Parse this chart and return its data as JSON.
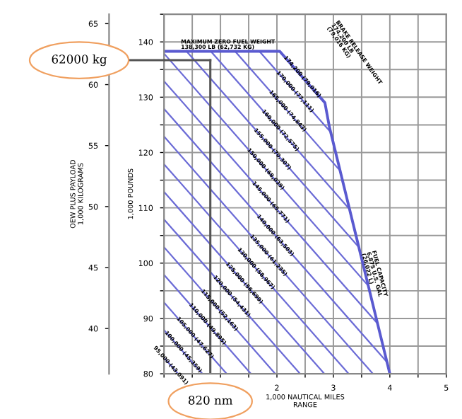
{
  "chart_data": {
    "type": "line",
    "xlabel": "1,000 NAUTICAL MILES\nRANGE",
    "ylabel": "1,000 POUNDS",
    "y2label": "OEW PLUS PAYLOAD\n1,000 KILOGRAMS",
    "xlim": [
      0,
      5
    ],
    "ylim": [
      80,
      145
    ],
    "y2lim": [
      36.29,
      65.77
    ],
    "xticks": [
      {
        "value": 0,
        "label": null
      },
      {
        "value": 0.5,
        "label": null
      },
      {
        "value": 1,
        "label": null
      },
      {
        "value": 1.5,
        "label": null
      },
      2,
      {
        "value": 2.5,
        "label": null
      },
      3,
      {
        "value": 3.5,
        "label": null
      },
      4,
      {
        "value": 4.5,
        "label": null
      },
      5
    ],
    "yticks": [
      80,
      {
        "value": 85,
        "label": null
      },
      90,
      {
        "value": 95,
        "label": null
      },
      100,
      {
        "value": 105,
        "label": null
      },
      110,
      {
        "value": 115,
        "label": null
      },
      120,
      {
        "value": 125,
        "label": null
      },
      130,
      {
        "value": 135,
        "label": null
      },
      140,
      {
        "value": 145,
        "label": null
      }
    ],
    "y2ticks": [
      40,
      45,
      50,
      55,
      60,
      65
    ],
    "grid": true,
    "legend": false,
    "marker": "none",
    "line_style": "solid",
    "series": [
      {
        "color": "#6b6bd6",
        "x": [
          0,
          0.25
        ],
        "values": [
          82.9,
          80
        ]
      },
      {
        "color": "#6b6bd6",
        "x": [
          0,
          0.68
        ],
        "values": [
          87.9,
          80
        ]
      },
      {
        "color": "#6b6bd6",
        "x": [
          0,
          1.11
        ],
        "values": [
          92.9,
          80
        ]
      },
      {
        "color": "#6b6bd6",
        "x": [
          0,
          1.54
        ],
        "values": [
          97.9,
          80
        ]
      },
      {
        "color": "#6b6bd6",
        "x": [
          0,
          1.97
        ],
        "values": [
          102.9,
          80
        ]
      },
      {
        "color": "#6b6bd6",
        "x": [
          0,
          2.41
        ],
        "values": [
          107.9,
          80
        ]
      },
      {
        "color": "#6b6bd6",
        "x": [
          0,
          2.84
        ],
        "values": [
          112.9,
          80
        ]
      },
      {
        "color": "#6b6bd6",
        "x": [
          0,
          3.27
        ],
        "values": [
          117.9,
          80
        ]
      },
      {
        "color": "#6b6bd6",
        "x": [
          0,
          3.7
        ],
        "values": [
          122.9,
          80
        ]
      },
      {
        "color": "#6b6bd6",
        "x": [
          0,
          3.95
        ],
        "values": [
          127.9,
          82.1
        ]
      },
      {
        "color": "#6b6bd6",
        "x": [
          0,
          3.78
        ],
        "values": [
          132.9,
          89.1
        ]
      },
      {
        "color": "#6b6bd6",
        "x": [
          0,
          3.61
        ],
        "values": [
          137.9,
          96.0
        ]
      },
      {
        "color": "#6b6bd6",
        "x": [
          0.4,
          3.45
        ],
        "values": [
          138.3,
          102.9
        ]
      },
      {
        "color": "#6b6bd6",
        "x": [
          0.83,
          3.29
        ],
        "values": [
          138.3,
          109.7
        ]
      },
      {
        "color": "#6b6bd6",
        "x": [
          1.26,
          3.12
        ],
        "values": [
          138.3,
          116.7
        ]
      },
      {
        "color": "#6b6bd6",
        "x": [
          1.69,
          2.96
        ],
        "values": [
          138.3,
          123.6
        ]
      },
      {
        "color": "#5a5ad0",
        "x": [
          0,
          2.05,
          2.85,
          2.93,
          4.0
        ],
        "values": [
          138.3,
          138.3,
          129.0,
          124.6,
          80
        ]
      }
    ],
    "ref_lines": [
      {
        "axis": "y2",
        "value": 62,
        "label": "62000 kg",
        "color": "#555555"
      },
      {
        "axis": "x",
        "value": 0.82,
        "label": "820 nm",
        "color": "#555555"
      }
    ],
    "annotations": [
      {
        "text": "95,000 (43,091)",
        "x": 0.12,
        "y": 81.5
      },
      {
        "text": "100,000 (45,359)",
        "x": 0.34,
        "y": 83.95
      },
      {
        "text": "105,000 (47,627)",
        "x": 0.55,
        "y": 86.5
      },
      {
        "text": "110,000 (49,895)",
        "x": 0.77,
        "y": 89.0
      },
      {
        "text": "115,000 (52,163)",
        "x": 0.98,
        "y": 91.5
      },
      {
        "text": "120,000 (54,431)",
        "x": 1.2,
        "y": 94.0
      },
      {
        "text": "125,000 (56,699)",
        "x": 1.42,
        "y": 96.4
      },
      {
        "text": "130,000 (58,967)",
        "x": 1.63,
        "y": 99.0
      },
      {
        "text": "135,000 (61,235)",
        "x": 1.85,
        "y": 101.4
      },
      {
        "text": "140,000 (63,503)",
        "x": 1.97,
        "y": 105.0
      },
      {
        "text": "145,000 (65,771)",
        "x": 1.89,
        "y": 111.0
      },
      {
        "text": "150,000 (68,039)",
        "x": 1.8,
        "y": 117.0
      },
      {
        "text": "155,000 (70,307)",
        "x": 1.92,
        "y": 120.6
      },
      {
        "text": "160,000 (72,575)",
        "x": 2.06,
        "y": 124.0
      },
      {
        "text": "165,000 (74,843)",
        "x": 2.19,
        "y": 127.5
      },
      {
        "text": "170,000 (77,111)",
        "x": 2.32,
        "y": 131.0
      },
      {
        "text": "174,200 (79,016)",
        "x": 2.45,
        "y": 133.7
      },
      {
        "text": "MAXIMUM ZERO FUEL WEIGHT\n138,300 LB (62,732 KG)",
        "x": 0.3,
        "y": 139.5
      },
      "BRAKE RELEASE WEIGHT\n174,200 LB\n(79,016 KG)",
      {
        "text": "FUEL CAPACITY\n6,875 U.S. GAL\n(26,022 L)",
        "x": 3.62,
        "y": 102
      }
    ]
  }
}
